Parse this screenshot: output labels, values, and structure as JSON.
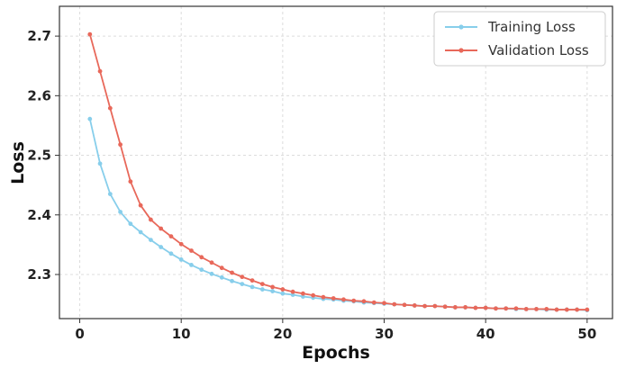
{
  "chart_data": {
    "type": "line",
    "title": "",
    "xlabel": "Epochs",
    "ylabel": "Loss",
    "xlim": [
      -2,
      52.5
    ],
    "ylim": [
      2.226,
      2.75
    ],
    "xticks": [
      0,
      10,
      20,
      30,
      40,
      50
    ],
    "yticks": [
      2.3,
      2.4,
      2.5,
      2.6,
      2.7
    ],
    "grid": true,
    "legend_position": "top-right",
    "series": [
      {
        "name": "Training Loss",
        "color": "#87CEEB",
        "x": [
          1,
          2,
          3,
          4,
          5,
          6,
          7,
          8,
          9,
          10,
          11,
          12,
          13,
          14,
          15,
          16,
          17,
          18,
          19,
          20,
          21,
          22,
          23,
          24,
          25,
          26,
          27,
          28,
          29,
          30,
          31,
          32,
          33,
          34,
          35,
          36,
          37,
          38,
          39,
          40,
          41,
          42,
          43,
          44,
          45,
          46,
          47,
          48,
          49,
          50
        ],
        "values": [
          2.561,
          2.486,
          2.435,
          2.405,
          2.385,
          2.371,
          2.358,
          2.346,
          2.335,
          2.325,
          2.316,
          2.308,
          2.301,
          2.295,
          2.289,
          2.284,
          2.279,
          2.275,
          2.272,
          2.268,
          2.266,
          2.263,
          2.261,
          2.259,
          2.258,
          2.256,
          2.255,
          2.253,
          2.252,
          2.251,
          2.25,
          2.249,
          2.248,
          2.247,
          2.247,
          2.246,
          2.245,
          2.245,
          2.244,
          2.244,
          2.243,
          2.243,
          2.242,
          2.242,
          2.242,
          2.241,
          2.241,
          2.241,
          2.241,
          2.24
        ]
      },
      {
        "name": "Validation Loss",
        "color": "#E8685A",
        "x": [
          1,
          2,
          3,
          4,
          5,
          6,
          7,
          8,
          9,
          10,
          11,
          12,
          13,
          14,
          15,
          16,
          17,
          18,
          19,
          20,
          21,
          22,
          23,
          24,
          25,
          26,
          27,
          28,
          29,
          30,
          31,
          32,
          33,
          34,
          35,
          36,
          37,
          38,
          39,
          40,
          41,
          42,
          43,
          44,
          45,
          46,
          47,
          48,
          49,
          50
        ],
        "values": [
          2.703,
          2.641,
          2.579,
          2.518,
          2.456,
          2.416,
          2.392,
          2.377,
          2.364,
          2.351,
          2.34,
          2.329,
          2.32,
          2.311,
          2.303,
          2.296,
          2.29,
          2.284,
          2.279,
          2.275,
          2.271,
          2.268,
          2.265,
          2.262,
          2.26,
          2.258,
          2.256,
          2.255,
          2.253,
          2.252,
          2.25,
          2.249,
          2.248,
          2.247,
          2.247,
          2.246,
          2.245,
          2.245,
          2.244,
          2.244,
          2.243,
          2.243,
          2.243,
          2.242,
          2.242,
          2.242,
          2.241,
          2.241,
          2.241,
          2.241
        ]
      }
    ]
  }
}
